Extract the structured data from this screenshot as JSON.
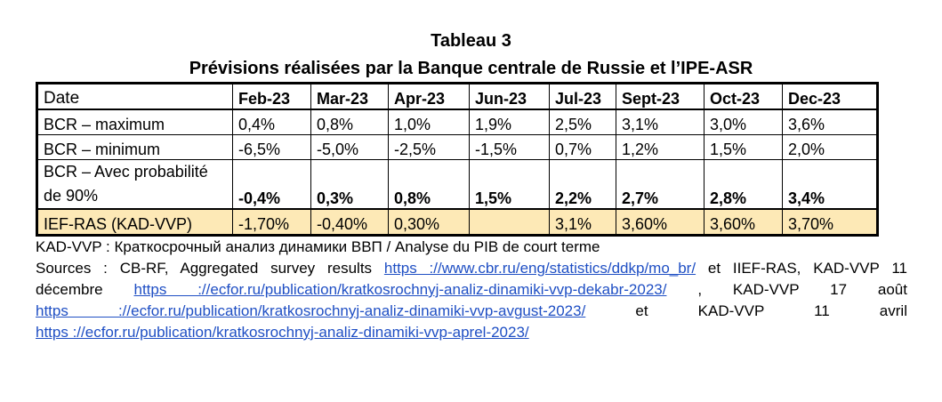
{
  "title": "Tableau 3",
  "subtitle": "Prévisions réalisées par la Banque centrale de Russie et l’IPE-ASR",
  "table": {
    "headers": [
      "Date",
      "Feb-23",
      "Mar-23",
      "Apr-23",
      "Jun-23",
      "Jul-23",
      "Sept-23",
      "Oct-23",
      "Dec-23"
    ],
    "rows": [
      {
        "label": "BCR – maximum",
        "values": [
          "0,4%",
          "0,8%",
          "1,0%",
          "1,9%",
          "2,5%",
          "3,1%",
          "3,0%",
          "3,6%"
        ]
      },
      {
        "label": "BCR – minimum",
        "values": [
          "-6,5%",
          "-5,0%",
          "-2,5%",
          "-1,5%",
          "0,7%",
          "1,2%",
          "1,5%",
          "2,0%"
        ]
      },
      {
        "label": "BCR – Avec probabilité de 90%",
        "values": [
          "-0,4%",
          "0,3%",
          "0,8%",
          "1,5%",
          "2,2%",
          "2,7%",
          "2,8%",
          "3,4%"
        ]
      },
      {
        "label": "IEF-RAS (KAD-VVP)",
        "values": [
          "-1,70%",
          "-0,40%",
          "0,30%",
          "",
          "3,1%",
          "3,60%",
          "3,60%",
          "3,70%"
        ]
      }
    ],
    "highlight_color": "#fde9b6"
  },
  "notes": {
    "kad": "KAD-VVP : Краткосрочный анализ динамики ВВП / Analyse du PIB de court terme",
    "sources_prefix": "Sources : CB-RF, Aggregated survey results",
    "link_cbr": "https ://www.cbr.ru/eng/statistics/ddkp/mo_br/",
    "sources_mid": "et IIEF-RAS, KAD-VVP 11",
    "dec_word": "décembre",
    "link_dec": "https ://ecfor.ru/publication/kratkosrochnyj-analiz-dinamiki-vvp-dekabr-2023/",
    "aug_text": ", KAD-VVP 17 août",
    "link_aug": "https ://ecfor.ru/publication/kratkosrochnyj-analiz-dinamiki-vvp-avgust-2023/",
    "apr_text": "et KAD-VVP 11 avril",
    "link_apr": "https ://ecfor.ru/publication/kratkosrochnyj-analiz-dinamiki-vvp-aprel-2023/",
    "link_color": "#1f4fc4"
  }
}
